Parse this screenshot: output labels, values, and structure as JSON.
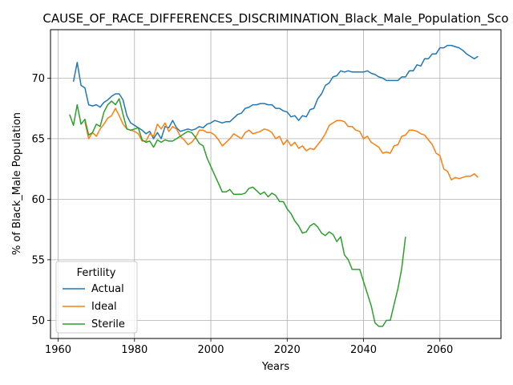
{
  "chart_data": {
    "type": "line",
    "title": "CAUSE_OF_RACE_DIFFERENCES_DISCRIMINATION_Black_Male_Population_Sco",
    "xlabel": "Years",
    "ylabel": "% of Black_Male Population",
    "xlim": [
      1958,
      2076
    ],
    "ylim": [
      48.5,
      74.0
    ],
    "xticks": [
      1960,
      1980,
      2000,
      2020,
      2040,
      2060
    ],
    "yticks": [
      50,
      55,
      60,
      65,
      70
    ],
    "grid": true,
    "legend": {
      "title": "Fertility",
      "placement": "lower-left"
    },
    "series": [
      {
        "name": "Actual",
        "color": "#1f77b4",
        "x": [
          1964,
          1965,
          1966,
          1967,
          1968,
          1969,
          1970,
          1971,
          1972,
          1973,
          1974,
          1975,
          1976,
          1977,
          1978,
          1979,
          1980,
          1981,
          1982,
          1983,
          1984,
          1985,
          1986,
          1987,
          1988,
          1989,
          1990,
          1991,
          1992,
          1993,
          1994,
          1995,
          1996,
          1997,
          1998,
          1999,
          2000,
          2001,
          2002,
          2003,
          2004,
          2005,
          2006,
          2007,
          2008,
          2009,
          2010,
          2011,
          2012,
          2013,
          2014,
          2015,
          2016,
          2017,
          2018,
          2019,
          2020,
          2021,
          2022,
          2023,
          2024,
          2025,
          2026,
          2027,
          2028,
          2029,
          2030,
          2031,
          2032,
          2033,
          2034,
          2035,
          2036,
          2037,
          2038,
          2039,
          2040,
          2041,
          2042,
          2043,
          2044,
          2045,
          2046,
          2047,
          2048,
          2049,
          2050,
          2051,
          2052,
          2053,
          2054,
          2055,
          2056,
          2057,
          2058,
          2059,
          2060,
          2061,
          2062,
          2063,
          2064,
          2065,
          2066,
          2067,
          2068,
          2069,
          2070
        ],
        "values": [
          69.7,
          71.3,
          69.4,
          69.2,
          67.8,
          67.7,
          67.8,
          67.6,
          68.0,
          68.2,
          68.5,
          68.7,
          68.7,
          68.2,
          66.9,
          66.3,
          66.1,
          65.9,
          65.7,
          65.4,
          65.6,
          65.0,
          65.5,
          65.0,
          66.0,
          65.9,
          66.5,
          65.9,
          65.6,
          65.7,
          65.8,
          65.7,
          65.8,
          66.0,
          65.9,
          66.2,
          66.3,
          66.5,
          66.4,
          66.3,
          66.4,
          66.4,
          66.7,
          67.0,
          67.1,
          67.5,
          67.6,
          67.8,
          67.8,
          67.9,
          67.9,
          67.8,
          67.8,
          67.5,
          67.5,
          67.3,
          67.2,
          66.8,
          66.9,
          66.5,
          66.9,
          66.8,
          67.4,
          67.5,
          68.3,
          68.7,
          69.4,
          69.6,
          70.1,
          70.2,
          70.6,
          70.5,
          70.6,
          70.5,
          70.5,
          70.5,
          70.5,
          70.6,
          70.4,
          70.3,
          70.1,
          70.0,
          69.8,
          69.8,
          69.8,
          69.8,
          70.1,
          70.1,
          70.6,
          70.6,
          71.1,
          71.0,
          71.6,
          71.6,
          72.0,
          72.0,
          72.5,
          72.5,
          72.7,
          72.7,
          72.6,
          72.5,
          72.3,
          72.0,
          71.8,
          71.6,
          71.8
        ]
      },
      {
        "name": "Ideal",
        "color": "#ff7f0e",
        "x": [
          1967,
          1968,
          1969,
          1970,
          1971,
          1972,
          1973,
          1974,
          1975,
          1976,
          1977,
          1978,
          1979,
          1980,
          1981,
          1982,
          1983,
          1984,
          1985,
          1986,
          1987,
          1988,
          1989,
          1990,
          1991,
          1992,
          1993,
          1994,
          1995,
          1996,
          1997,
          1998,
          1999,
          2000,
          2001,
          2002,
          2003,
          2004,
          2005,
          2006,
          2007,
          2008,
          2009,
          2010,
          2011,
          2012,
          2013,
          2014,
          2015,
          2016,
          2017,
          2018,
          2019,
          2020,
          2021,
          2022,
          2023,
          2024,
          2025,
          2026,
          2027,
          2028,
          2029,
          2030,
          2031,
          2032,
          2033,
          2034,
          2035,
          2036,
          2037,
          2038,
          2039,
          2040,
          2041,
          2042,
          2043,
          2044,
          2045,
          2046,
          2047,
          2048,
          2049,
          2050,
          2051,
          2052,
          2053,
          2054,
          2055,
          2056,
          2057,
          2058,
          2059,
          2060,
          2061,
          2062,
          2063,
          2064,
          2065,
          2066,
          2067,
          2068,
          2069,
          2070
        ],
        "values": [
          66.4,
          65.0,
          65.5,
          65.2,
          65.8,
          66.2,
          66.7,
          66.9,
          67.5,
          66.9,
          66.2,
          65.8,
          65.7,
          65.6,
          65.4,
          64.8,
          64.8,
          65.4,
          65.2,
          66.2,
          65.8,
          66.3,
          65.6,
          66.0,
          65.8,
          65.2,
          64.9,
          64.5,
          64.7,
          65.1,
          65.7,
          65.7,
          65.5,
          65.5,
          65.3,
          64.9,
          64.4,
          64.7,
          65.0,
          65.4,
          65.2,
          65.0,
          65.5,
          65.7,
          65.4,
          65.5,
          65.6,
          65.8,
          65.7,
          65.5,
          65.0,
          65.2,
          64.5,
          64.9,
          64.4,
          64.7,
          64.2,
          64.4,
          64.0,
          64.2,
          64.1,
          64.5,
          64.9,
          65.4,
          66.1,
          66.3,
          66.5,
          66.5,
          66.4,
          66.0,
          66.0,
          65.7,
          65.6,
          65.0,
          65.2,
          64.7,
          64.5,
          64.3,
          63.8,
          63.9,
          63.8,
          64.4,
          64.5,
          65.2,
          65.3,
          65.7,
          65.7,
          65.6,
          65.4,
          65.3,
          64.9,
          64.5,
          63.8,
          63.6,
          62.5,
          62.3,
          61.6,
          61.8,
          61.7,
          61.8,
          61.9,
          61.9,
          62.1,
          61.8
        ]
      },
      {
        "name": "Sterile",
        "color": "#2ca02c",
        "x": [
          1963,
          1964,
          1965,
          1966,
          1967,
          1968,
          1969,
          1970,
          1971,
          1972,
          1973,
          1974,
          1975,
          1976,
          1977,
          1978,
          1979,
          1980,
          1981,
          1982,
          1983,
          1984,
          1985,
          1986,
          1987,
          1988,
          1989,
          1990,
          1991,
          1992,
          1993,
          1994,
          1995,
          1996,
          1997,
          1998,
          1999,
          2000,
          2001,
          2002,
          2003,
          2004,
          2005,
          2006,
          2007,
          2008,
          2009,
          2010,
          2011,
          2012,
          2013,
          2014,
          2015,
          2016,
          2017,
          2018,
          2019,
          2020,
          2021,
          2022,
          2023,
          2024,
          2025,
          2026,
          2027,
          2028,
          2029,
          2030,
          2031,
          2032,
          2033,
          2034,
          2035,
          2036,
          2037,
          2038,
          2039,
          2040,
          2041,
          2042,
          2043,
          2044,
          2045,
          2046,
          2047,
          2048,
          2049,
          2050,
          2051
        ],
        "values": [
          67.0,
          66.1,
          67.8,
          66.2,
          66.6,
          65.3,
          65.5,
          66.2,
          66.0,
          67.2,
          67.8,
          68.1,
          67.8,
          68.3,
          67.0,
          65.8,
          65.7,
          65.8,
          65.9,
          64.9,
          64.7,
          64.8,
          64.3,
          64.9,
          64.7,
          64.9,
          64.8,
          64.8,
          65.0,
          65.2,
          65.4,
          65.6,
          65.5,
          65.1,
          64.6,
          64.4,
          63.4,
          62.7,
          62.0,
          61.3,
          60.6,
          60.6,
          60.8,
          60.4,
          60.4,
          60.4,
          60.5,
          60.9,
          61.0,
          60.7,
          60.4,
          60.6,
          60.2,
          60.5,
          60.3,
          59.8,
          59.8,
          59.2,
          58.8,
          58.2,
          57.8,
          57.2,
          57.3,
          57.8,
          58.0,
          57.7,
          57.2,
          57.0,
          57.3,
          57.1,
          56.5,
          56.9,
          55.4,
          55.0,
          54.2,
          54.2,
          54.2,
          53.2,
          52.2,
          51.2,
          49.8,
          49.5,
          49.5,
          50.0,
          50.0,
          51.3,
          52.6,
          54.3,
          56.9
        ]
      }
    ]
  }
}
